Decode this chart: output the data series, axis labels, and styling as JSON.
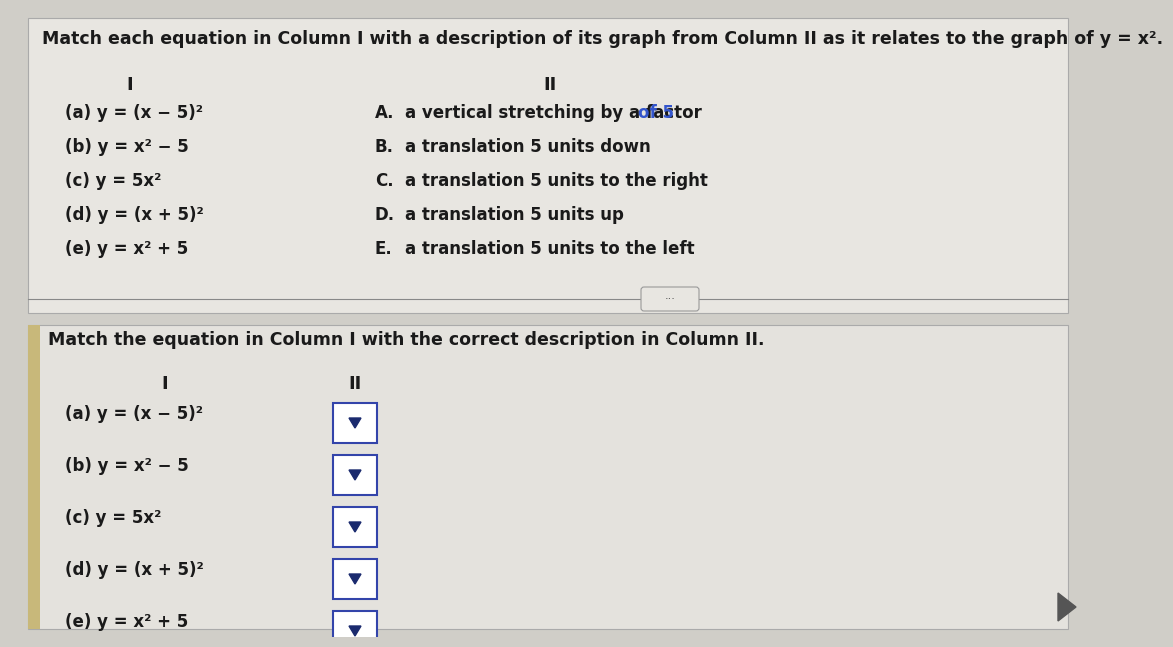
{
  "bg_color": "#d0cec8",
  "panel_bg": "#e2e0db",
  "title_text": "Match each equation in Column I with a description of its graph from Column II as it relates to the graph of y = x².",
  "col1_header": "I",
  "col2_header": "II",
  "col1_items": [
    "(a) y = (x − 5)²",
    "(b) y = x² − 5",
    "(c) y = 5x²",
    "(d) y = (x + 5)²",
    "(e) y = x² + 5"
  ],
  "col2_prefix": [
    "A.",
    "B.",
    "C.",
    "D.",
    "E."
  ],
  "col2_texts": [
    "a vertical stretching by a factor of 5",
    "a translation 5 units down",
    "a translation 5 units to the right",
    "a translation 5 units up",
    "a translation 5 units to the left"
  ],
  "separator_text": "Match the equation in Column I with the correct description in Column II.",
  "bottom_col1_items": [
    "(a) y = (x − 5)²",
    "(b) y = x² − 5",
    "(c) y = 5x²",
    "(d) y = (x + 5)²",
    "(e) y = x² + 5"
  ],
  "text_color": "#1a1a1a",
  "highlight_of5_color": "#3355cc",
  "dropdown_border_color": "#3344aa",
  "arrow_color": "#1a2a6e",
  "accent_bar_color": "#c8b87a",
  "font_size_title": 12.5,
  "font_size_items": 12,
  "font_size_header": 13
}
